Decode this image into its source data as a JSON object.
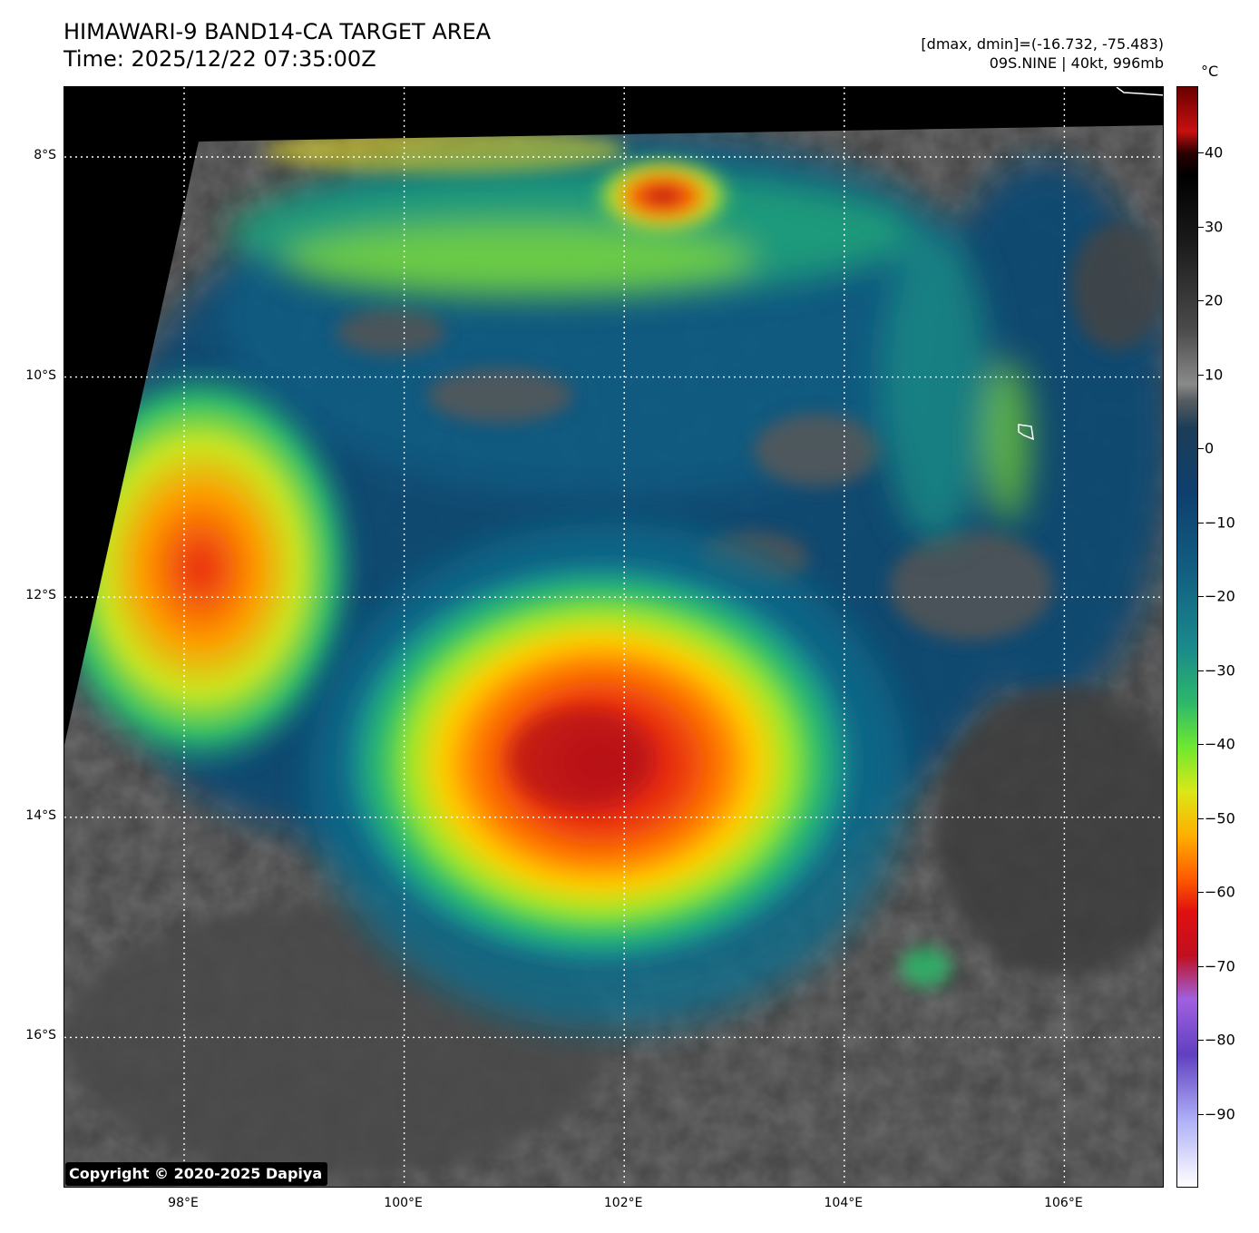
{
  "title": {
    "line1": "HIMAWARI-9 BAND14-CA TARGET AREA",
    "line2": "Time: 2025/12/22 07:35:00Z"
  },
  "meta": {
    "range": "[dmax, dmin]=(-16.732, -75.483)",
    "storm": "09S.NINE | 40kt, 996mb"
  },
  "map": {
    "lat_labels": [
      "8°S",
      "10°S",
      "12°S",
      "14°S",
      "16°S"
    ],
    "lon_labels": [
      "98°E",
      "100°E",
      "102°E",
      "104°E",
      "106°E"
    ],
    "lat_values": [
      -8,
      -10,
      -12,
      -14,
      -16
    ],
    "lon_values": [
      98,
      100,
      102,
      104,
      106
    ],
    "gridlines": true,
    "storm_center_lon": 101.9,
    "storm_center_lat": -13.4,
    "min_temp_c": -75.483,
    "max_temp_c": -16.732
  },
  "colorbar": {
    "unit": "°C",
    "ticks": [
      "40",
      "30",
      "20",
      "10",
      "0",
      "−10",
      "−20",
      "−30",
      "−40",
      "−50",
      "−60",
      "−70",
      "−80",
      "−90"
    ],
    "tick_values": [
      40,
      30,
      20,
      10,
      0,
      -10,
      -20,
      -30,
      -40,
      -50,
      -60,
      -70,
      -80,
      -90
    ],
    "range_max": 49,
    "range_min": -100
  },
  "copyright": "Copyright © 2020-2025 Dapiya"
}
